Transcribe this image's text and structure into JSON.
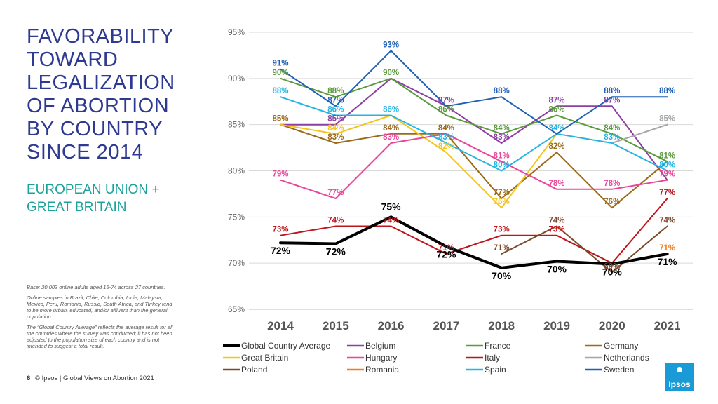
{
  "page": {
    "title": "FAVORABILITY TOWARD LEGALIZATION OF ABORTION BY COUNTRY SINCE 2014",
    "subtitle": "EUROPEAN UNION + GREAT BRITAIN",
    "notes": [
      "Base: 20,003 online adults aged 16-74 across 27 countries.",
      "Online samples in Brazil, Chile, Colombia, India, Malaysia, Mexico, Peru, Romania, Russia, South Africa, and Turkey tend to be more urban, educated, and/or affluent than the general population.",
      "The “Global Country Average” reflects the average result for all the countries where the survey was conducted; it has not been adjusted to the population size of each country and is not intended to suggest a total result."
    ],
    "footer": {
      "page_number": "6",
      "text": "© Ipsos | Global Views on Abortion 2021"
    },
    "logo": "Ipsos"
  },
  "chart_data": {
    "type": "line",
    "title": "FAVORABILITY TOWARD LEGALIZATION OF ABORTION BY COUNTRY SINCE 2014",
    "categories": [
      "2014",
      "2015",
      "2016",
      "2017",
      "2018",
      "2019",
      "2020",
      "2021"
    ],
    "ylim": [
      65,
      95
    ],
    "yticks": [
      65,
      70,
      75,
      80,
      85,
      90,
      95
    ],
    "ytick_suffix": "%",
    "legend_position": "bottom",
    "series": [
      {
        "name": "Global Country Average",
        "color": "#000000",
        "bold": true,
        "values": [
          72.2,
          72.1,
          75,
          71.8,
          69.5,
          70.2,
          69.9,
          71
        ],
        "labels": [
          "72%",
          "72%",
          "75%",
          "72%",
          "70%",
          "70%",
          "70%",
          "71%"
        ]
      },
      {
        "name": "Belgium",
        "color": "#8e3ea2",
        "values": [
          85,
          85,
          90,
          87,
          83,
          87,
          87,
          79
        ],
        "labels": [
          "",
          "85%",
          "",
          "87%",
          "83%",
          "87%",
          "87%",
          ""
        ]
      },
      {
        "name": "France",
        "color": "#5a9a3c",
        "values": [
          90,
          88,
          90,
          86,
          84,
          86,
          84,
          81
        ],
        "labels": [
          "90%",
          "88%",
          "90%",
          "86%",
          "84%",
          "86%",
          "84%",
          "81%"
        ]
      },
      {
        "name": "Germany",
        "color": "#9a6a1a",
        "values": [
          85,
          83,
          84,
          84,
          77,
          82,
          76,
          81
        ],
        "labels": [
          "85%",
          "83%",
          "84%",
          "84%",
          "77%",
          "82%",
          "76%",
          ""
        ]
      },
      {
        "name": "Great Britain",
        "color": "#f5c518",
        "values": [
          85,
          84,
          86,
          82,
          76,
          84,
          null,
          null
        ],
        "labels": [
          "",
          "84%",
          "",
          "82%",
          "76%",
          "",
          "",
          ""
        ]
      },
      {
        "name": "Hungary",
        "color": "#e8479b",
        "values": [
          79,
          77,
          83,
          84,
          81,
          78,
          78,
          79
        ],
        "labels": [
          "79%",
          "77%",
          "83%",
          "",
          "81%",
          "78%",
          "78%",
          "79%"
        ]
      },
      {
        "name": "Italy",
        "color": "#c0141c",
        "values": [
          73,
          74,
          74,
          71,
          73,
          73,
          70,
          77
        ],
        "labels": [
          "73%",
          "74%",
          "74%",
          "71%",
          "73%",
          "73%",
          "",
          "77%"
        ]
      },
      {
        "name": "Netherlands",
        "color": "#a6a6a6",
        "values": [
          null,
          null,
          null,
          null,
          null,
          null,
          83,
          85
        ],
        "labels": [
          "",
          "",
          "",
          "",
          "",
          "",
          "",
          "85%"
        ]
      },
      {
        "name": "Poland",
        "color": "#7a4a2a",
        "values": [
          null,
          null,
          null,
          null,
          71,
          74,
          69,
          74
        ],
        "labels": [
          "",
          "",
          "",
          "",
          "71%",
          "74%",
          "69%",
          "74%"
        ]
      },
      {
        "name": "Romania",
        "color": "#ef7d22",
        "values": [
          null,
          null,
          null,
          null,
          null,
          null,
          null,
          71
        ],
        "labels": [
          "",
          "",
          "",
          "",
          "",
          "",
          "",
          "71%"
        ]
      },
      {
        "name": "Spain",
        "color": "#26b5e3",
        "values": [
          88,
          86,
          86,
          83,
          80,
          84,
          83,
          80
        ],
        "labels": [
          "88%",
          "86%",
          "86%",
          "83%",
          "80%",
          "84%",
          "83%",
          "80%"
        ]
      },
      {
        "name": "Sweden",
        "color": "#1f5fb5",
        "values": [
          91,
          87,
          93,
          87,
          88,
          84,
          88,
          88
        ],
        "labels": [
          "91%",
          "87%",
          "93%",
          "",
          "88%",
          "",
          "88%",
          "88%"
        ]
      }
    ]
  }
}
